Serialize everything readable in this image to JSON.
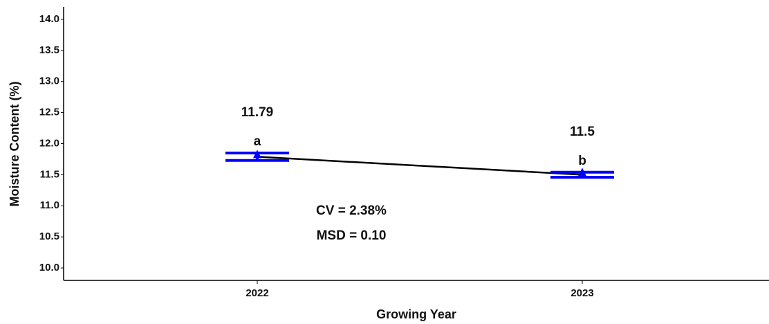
{
  "chart_data": {
    "type": "line",
    "x_label": "Growing Year",
    "y_label": "Moisture Content (%)",
    "categories": [
      "2022",
      "2023"
    ],
    "series": [
      {
        "name": "Moisture Content",
        "color": "#000000",
        "error_color": "#0000ff",
        "values": [
          11.79,
          11.5
        ],
        "errors": [
          0.06,
          0.04
        ],
        "groups": [
          "a",
          "b"
        ]
      }
    ],
    "ylim": [
      9.8,
      14.2
    ],
    "yticks": [
      {
        "value": 10,
        "label": "10.0"
      },
      {
        "value": 10.5,
        "label": "10.5"
      },
      {
        "value": 11,
        "label": "11.0"
      },
      {
        "value": 11.5,
        "label": "11.5"
      },
      {
        "value": 12,
        "label": "12.0"
      },
      {
        "value": 12.5,
        "label": "12.5"
      },
      {
        "value": 13,
        "label": "13.0"
      },
      {
        "value": 13.5,
        "label": "13.5"
      },
      {
        "value": 14,
        "label": "14.0"
      }
    ],
    "annotations": [
      "CV = 2.38%",
      "MSD = 0.10"
    ],
    "grid": false
  }
}
